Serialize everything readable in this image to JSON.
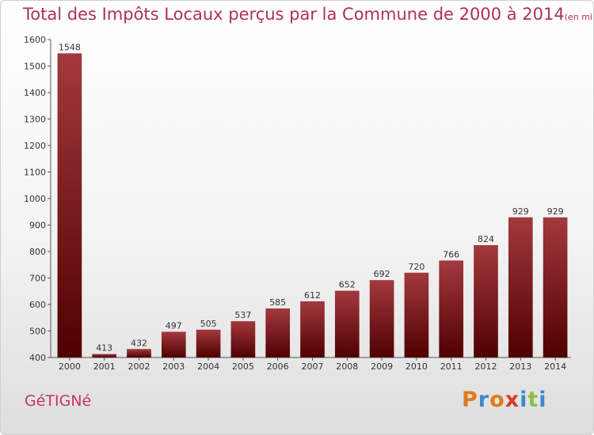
{
  "title": "Total des Impôts Locaux perçus par la Commune de 2000 à 2014",
  "unit": "(en milliers d'€)",
  "commune": "GéTIGNé",
  "logo": {
    "letters": [
      "P",
      "r",
      "o",
      "x",
      "i",
      "t",
      "i"
    ],
    "colors": [
      "#e07b1a",
      "#3e88c9",
      "#e07b1a",
      "#d93a2b",
      "#3e88c9",
      "#8cbf3f",
      "#3e88c9"
    ]
  },
  "colors": {
    "title": "#b0305a",
    "bar_top": "#a3393f",
    "bar_bottom": "#4f0000"
  },
  "chart_data": {
    "type": "bar",
    "categories": [
      "2000",
      "2001",
      "2002",
      "2003",
      "2004",
      "2005",
      "2006",
      "2007",
      "2008",
      "2009",
      "2010",
      "2011",
      "2012",
      "2013",
      "2014"
    ],
    "values": [
      1548,
      413,
      432,
      497,
      505,
      537,
      585,
      612,
      652,
      692,
      720,
      766,
      824,
      929,
      929
    ],
    "title": "Total des Impôts Locaux perçus par la Commune de 2000 à 2014",
    "xlabel": "",
    "ylabel": "",
    "ylim": [
      400,
      1600
    ],
    "yticks": [
      400,
      500,
      600,
      700,
      800,
      900,
      1000,
      1100,
      1200,
      1300,
      1400,
      1500,
      1600
    ],
    "grid": false,
    "data_labels": true
  }
}
